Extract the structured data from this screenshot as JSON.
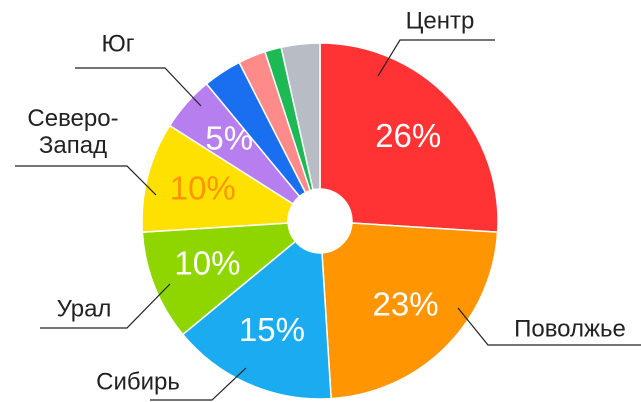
{
  "chart_data": {
    "type": "pie",
    "categories": [
      "Центр",
      "Поволжье",
      "Сибирь",
      "Урал",
      "Северо-Запад",
      "Юг",
      null,
      null,
      null,
      null
    ],
    "values": [
      26,
      23,
      15,
      10,
      10,
      5,
      3.5,
      2.5,
      1.5,
      3.5
    ],
    "value_labels": [
      "26%",
      "23%",
      "15%",
      "10%",
      "10%",
      "5%",
      null,
      null,
      null,
      null
    ],
    "colors": [
      "#ff3333",
      "#ff9500",
      "#1aabf0",
      "#8fd600",
      "#ffe100",
      "#b77ef0",
      "#1a6ef0",
      "#ff8a8a",
      "#1db954",
      "#b8bcc4"
    ]
  }
}
